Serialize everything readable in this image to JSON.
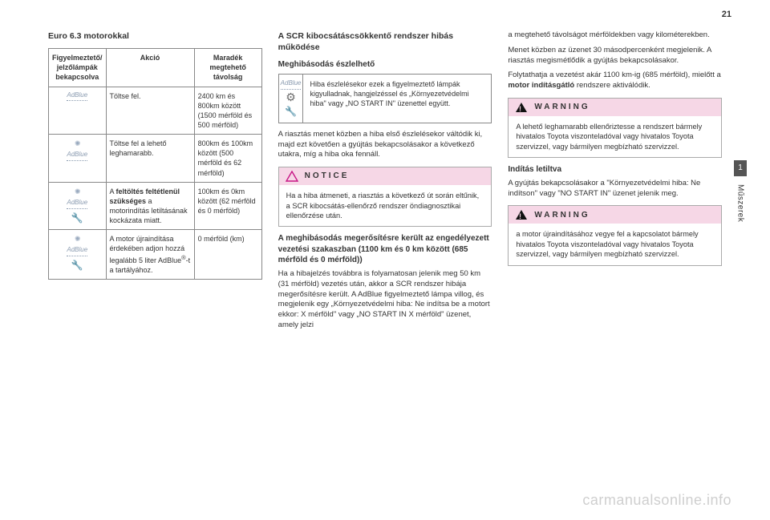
{
  "page_number": "21",
  "side_tab": {
    "number": "1",
    "label": "Műszerek"
  },
  "watermark": "carmanualsonline.info",
  "col1": {
    "heading": "Euro 6.3 motorokkal",
    "table": {
      "headers": [
        "Figyelmeztető/ jelzőlámpák bekapcsolva",
        "Akció",
        "Maradék megtehető távolság"
      ],
      "rows": [
        {
          "icon_type": "adblue",
          "action_html": "Töltse fel.",
          "range": "2400 km és 800km között (1500 mérföld és 500 mérföld)"
        },
        {
          "icon_type": "adblue-rays",
          "action_html": "Töltse fel a lehető leghamarabb.",
          "range": "800km és 100km között (500 mérföld és 62 mérföld)"
        },
        {
          "icon_type": "adblue-rays-wrench",
          "action_html": "A <b>feltöltés feltétlenül szükséges</b> a motorindítás letiltásának kockázata miatt.",
          "range": "100km és 0km között (62 mérföld és 0 mérföld)"
        },
        {
          "icon_type": "adblue-rays-wrench",
          "action_html": "A motor újraindítása érdekében adjon hozzá legalább 5 liter AdBlue<sup>®</sup>-t a tartályához.",
          "range": "0 mérföld (km)"
        }
      ]
    }
  },
  "col2": {
    "heading": "A SCR kibocsátáscsökkentő rendszer hibás működése",
    "sub1": "Meghibásodás észlelhető",
    "detect_text": "Hiba észlelésekor ezek a figyelmeztető lámpák kigyulladnak, hangjelzéssel és „Környezetvédelmi hiba\" vagy „NO START IN\" üzenettel együtt.",
    "para1": "A riasztás menet közben a hiba első észlelésekor váltódik ki, majd ezt követően a gyújtás bekapcsolásakor a következő utakra, míg a hiba oka fennáll.",
    "notice_label": "NOTICE",
    "notice_body": "Ha a hiba átmeneti, a riasztás a következő út során eltűnik, a SCR kibocsátás-ellenőrző rendszer öndiagnosztikai ellenőrzése után.",
    "sub2": "A meghibásodás megerősítésre került az engedélyezett vezetési szakaszban (1100 km és 0 km között (685 mérföld és 0 mérföld))",
    "para2": "Ha a hibajelzés továbbra is folyamatosan jelenik meg 50 km (31 mérföld) vezetés után, akkor a SCR rendszer hibája megerősítésre került. A AdBlue figyelmeztető lámpa villog, és megjelenik egy „Környezetvédelmi hiba: Ne indítsa be a motort ekkor: X mérföld\" vagy „NO START IN X mérföld\" üzenet, amely jelzi"
  },
  "col3": {
    "para1": "a megtehető távolságot mérföldekben vagy kilométerekben.",
    "para2": "Menet közben az üzenet 30 másodpercenként megjelenik. A riasztás megismétlődik a gyújtás bekapcsolásakor.",
    "para3_html": "Folytathatja a vezetést akár 1100 km-ig (685 mérföld), mielőtt a <b>motor indításgátló</b> rendszere aktiválódik.",
    "warning_label": "WARNING",
    "warning1_body": "A lehető leghamarabb ellenőriztesse a rendszert bármely hivatalos Toyota viszonteladóval vagy hivatalos Toyota szervizzel, vagy bármilyen megbízható szervizzel.",
    "sub": "Indítás letiltva",
    "para4": "A gyújtás bekapcsolásakor a \"Környezetvédelmi hiba: Ne indítson\" vagy \"NO START IN\" üzenet jelenik meg.",
    "warning2_body": "a motor újraindításához vegye fel a kapcsolatot bármely hivatalos Toyota viszonteladóval vagy hivatalos Toyota szervizzel, vagy bármilyen megbízható szervizzel."
  }
}
